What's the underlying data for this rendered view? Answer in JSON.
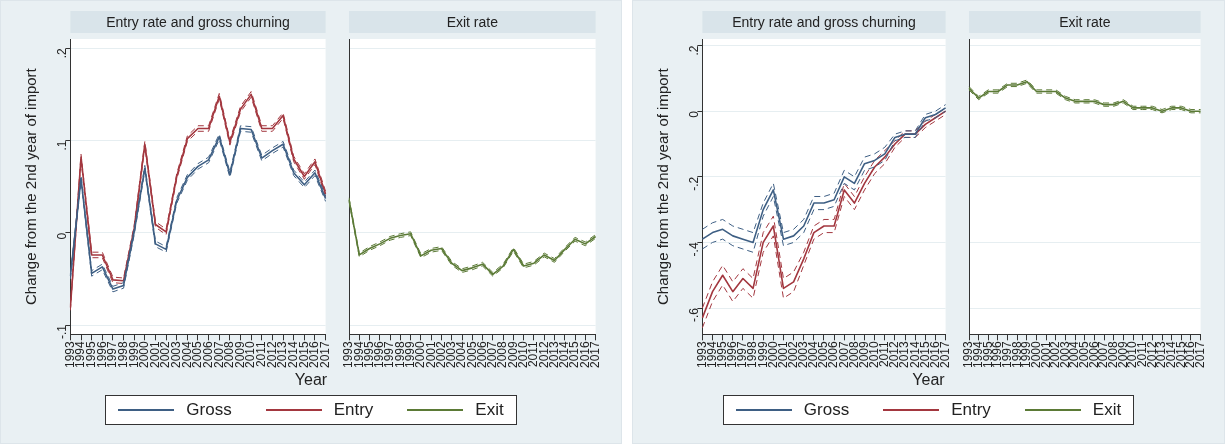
{
  "chart_data": [
    {
      "type": "line",
      "title": "Entry rate and gross churning",
      "ylabel": "Change from the 2nd year of import",
      "xlabel": "Year",
      "categories": [
        "1993",
        "1994",
        "1995",
        "1996",
        "1997",
        "1998",
        "1999",
        "2000",
        "2001",
        "2002",
        "2003",
        "2004",
        "2005",
        "2006",
        "2007",
        "2008",
        "2009",
        "2010",
        "2011",
        "2012",
        "2013",
        "2014",
        "2015",
        "2016",
        "2017"
      ],
      "ylim": [
        -0.11,
        0.21
      ],
      "yticks": [
        {
          "value": -0.1,
          "label": "-.1"
        },
        0,
        {
          "value": 0.1,
          "label": ".1"
        },
        {
          "value": 0.2,
          "label": ".2"
        }
      ],
      "grid": "y",
      "legend": "bottom",
      "marker": "none",
      "line_style": "solid",
      "series": [
        {
          "name": "Gross",
          "color": "#3e5f84",
          "values": [
            -0.047,
            0.059,
            -0.044,
            -0.037,
            -0.061,
            -0.057,
            0.001,
            0.07,
            -0.012,
            -0.018,
            0.035,
            0.06,
            0.072,
            0.079,
            0.104,
            0.063,
            0.113,
            0.112,
            0.081,
            0.089,
            0.096,
            0.065,
            0.052,
            0.065,
            0.037
          ]
        },
        {
          "color": "#3e5f84",
          "line_style": "dashed",
          "values": [
            -0.05,
            0.056,
            -0.047,
            -0.04,
            -0.064,
            -0.06,
            -0.002,
            0.067,
            -0.015,
            -0.021,
            0.032,
            0.057,
            0.069,
            0.076,
            0.101,
            0.06,
            0.11,
            0.109,
            0.078,
            0.086,
            0.093,
            0.062,
            0.049,
            0.062,
            0.034
          ]
        },
        {
          "color": "#3e5f84",
          "line_style": "dashed",
          "values": [
            -0.044,
            0.062,
            -0.041,
            -0.034,
            -0.058,
            -0.054,
            0.004,
            0.073,
            -0.009,
            -0.015,
            0.038,
            0.063,
            0.075,
            0.082,
            0.107,
            0.066,
            0.116,
            0.115,
            0.084,
            0.092,
            0.099,
            0.068,
            0.055,
            0.068,
            0.04
          ]
        },
        {
          "name": "Entry",
          "color": "#a3373f",
          "values": [
            -0.081,
            0.082,
            -0.024,
            -0.024,
            -0.051,
            -0.052,
            0.005,
            0.096,
            0.009,
            0.001,
            0.061,
            0.102,
            0.113,
            0.113,
            0.148,
            0.098,
            0.134,
            0.15,
            0.113,
            0.113,
            0.127,
            0.08,
            0.061,
            0.077,
            0.042
          ]
        },
        {
          "color": "#a3373f",
          "line_style": "dashed",
          "values": [
            -0.084,
            0.079,
            -0.027,
            -0.027,
            -0.054,
            -0.055,
            0.002,
            0.093,
            0.006,
            -0.002,
            0.058,
            0.099,
            0.11,
            0.11,
            0.145,
            0.095,
            0.131,
            0.147,
            0.11,
            0.11,
            0.124,
            0.077,
            0.058,
            0.074,
            0.039
          ]
        },
        {
          "color": "#a3373f",
          "line_style": "dashed",
          "values": [
            -0.078,
            0.085,
            -0.021,
            -0.021,
            -0.048,
            -0.049,
            0.008,
            0.099,
            0.012,
            0.004,
            0.064,
            0.105,
            0.116,
            0.116,
            0.151,
            0.101,
            0.137,
            0.153,
            0.116,
            0.116,
            0.13,
            0.083,
            0.064,
            0.08,
            0.045
          ]
        }
      ]
    },
    {
      "type": "line",
      "title": "Exit rate",
      "categories": [
        "1993",
        "1994",
        "1995",
        "1996",
        "1997",
        "1998",
        "1999",
        "2000",
        "2001",
        "2002",
        "2003",
        "2004",
        "2005",
        "2006",
        "2007",
        "2008",
        "2009",
        "2010",
        "2011",
        "2012",
        "2013",
        "2014",
        "2015",
        "2016",
        "2017"
      ],
      "ylim": [
        -0.11,
        0.21
      ],
      "yticks": [
        -0.1,
        0,
        0.1,
        0.2
      ],
      "tick_labels": "x",
      "grid": "y",
      "legend": "bottom",
      "marker": "none",
      "line_style": "solid",
      "series": [
        {
          "name": "Exit",
          "color": "#5b7a36",
          "values": [
            0.036,
            -0.024,
            -0.017,
            -0.012,
            -0.006,
            -0.003,
            -0.001,
            -0.025,
            -0.019,
            -0.017,
            -0.033,
            -0.041,
            -0.038,
            -0.034,
            -0.045,
            -0.036,
            -0.018,
            -0.036,
            -0.033,
            -0.024,
            -0.03,
            -0.018,
            -0.007,
            -0.012,
            -0.004
          ]
        },
        {
          "color": "#5b7a36",
          "line_style": "dashed",
          "values": [
            0.034,
            -0.026,
            -0.019,
            -0.014,
            -0.008,
            -0.005,
            -0.003,
            -0.027,
            -0.021,
            -0.019,
            -0.035,
            -0.043,
            -0.04,
            -0.036,
            -0.047,
            -0.038,
            -0.02,
            -0.038,
            -0.035,
            -0.026,
            -0.032,
            -0.02,
            -0.009,
            -0.014,
            -0.006
          ]
        },
        {
          "color": "#5b7a36",
          "line_style": "dashed",
          "values": [
            0.038,
            -0.022,
            -0.015,
            -0.01,
            -0.004,
            -0.001,
            0.001,
            -0.023,
            -0.017,
            -0.015,
            -0.031,
            -0.039,
            -0.036,
            -0.032,
            -0.043,
            -0.034,
            -0.016,
            -0.034,
            -0.031,
            -0.022,
            -0.028,
            -0.016,
            -0.005,
            -0.01,
            -0.002
          ]
        }
      ]
    },
    {
      "type": "line",
      "title": "Entry rate and gross churning",
      "ylabel": "Change from the 2nd year of import",
      "xlabel": "Year",
      "categories": [
        "1993",
        "1994",
        "1995",
        "1996",
        "1997",
        "1998",
        "1999",
        "2000",
        "2001",
        "2002",
        "2003",
        "2004",
        "2005",
        "2006",
        "2007",
        "2008",
        "2009",
        "2010",
        "2011",
        "2012",
        "2013",
        "2014",
        "2015",
        "2016",
        "2017"
      ],
      "ylim": [
        -0.68,
        0.22
      ],
      "yticks": [
        {
          "value": -0.6,
          "label": "-.6"
        },
        {
          "value": -0.4,
          "label": "-.4"
        },
        {
          "value": -0.2,
          "label": "-.2"
        },
        0,
        {
          "value": 0.2,
          "label": ".2"
        }
      ],
      "grid": "y",
      "legend": "bottom",
      "marker": "none",
      "line_style": "solid",
      "series": [
        {
          "name": "Gross",
          "color": "#3e5f84",
          "values": [
            -0.39,
            -0.37,
            -0.36,
            -0.38,
            -0.39,
            -0.4,
            -0.3,
            -0.24,
            -0.39,
            -0.38,
            -0.35,
            -0.28,
            -0.28,
            -0.27,
            -0.2,
            -0.22,
            -0.16,
            -0.15,
            -0.13,
            -0.08,
            -0.07,
            -0.07,
            -0.02,
            -0.01,
            0.01
          ]
        },
        {
          "color": "#3e5f84",
          "line_style": "dashed",
          "values": [
            -0.42,
            -0.4,
            -0.39,
            -0.41,
            -0.42,
            -0.43,
            -0.32,
            -0.26,
            -0.41,
            -0.4,
            -0.37,
            -0.3,
            -0.3,
            -0.29,
            -0.22,
            -0.24,
            -0.18,
            -0.17,
            -0.15,
            -0.09,
            -0.08,
            -0.08,
            -0.03,
            -0.02,
            0.0
          ]
        },
        {
          "color": "#3e5f84",
          "line_style": "dashed",
          "values": [
            -0.36,
            -0.34,
            -0.33,
            -0.35,
            -0.36,
            -0.37,
            -0.28,
            -0.22,
            -0.37,
            -0.36,
            -0.33,
            -0.26,
            -0.26,
            -0.25,
            -0.18,
            -0.2,
            -0.14,
            -0.13,
            -0.11,
            -0.07,
            -0.06,
            -0.06,
            -0.01,
            0.0,
            0.02
          ]
        },
        {
          "name": "Entry",
          "color": "#a3373f",
          "values": [
            -0.63,
            -0.55,
            -0.5,
            -0.55,
            -0.51,
            -0.54,
            -0.4,
            -0.35,
            -0.54,
            -0.52,
            -0.45,
            -0.37,
            -0.35,
            -0.35,
            -0.24,
            -0.28,
            -0.22,
            -0.17,
            -0.14,
            -0.1,
            -0.07,
            -0.07,
            -0.04,
            -0.02,
            0.0
          ]
        },
        {
          "color": "#a3373f",
          "line_style": "dashed",
          "values": [
            -0.66,
            -0.58,
            -0.53,
            -0.58,
            -0.54,
            -0.57,
            -0.43,
            -0.38,
            -0.57,
            -0.55,
            -0.47,
            -0.39,
            -0.37,
            -0.37,
            -0.26,
            -0.3,
            -0.24,
            -0.19,
            -0.16,
            -0.11,
            -0.08,
            -0.08,
            -0.05,
            -0.03,
            -0.01
          ]
        },
        {
          "color": "#a3373f",
          "line_style": "dashed",
          "values": [
            -0.6,
            -0.52,
            -0.47,
            -0.52,
            -0.48,
            -0.51,
            -0.37,
            -0.32,
            -0.51,
            -0.49,
            -0.43,
            -0.35,
            -0.33,
            -0.33,
            -0.22,
            -0.26,
            -0.2,
            -0.15,
            -0.12,
            -0.09,
            -0.06,
            -0.06,
            -0.03,
            -0.01,
            0.01
          ]
        }
      ]
    },
    {
      "type": "line",
      "title": "Exit rate",
      "categories": [
        "1993",
        "1994",
        "1995",
        "1996",
        "1997",
        "1998",
        "1999",
        "2000",
        "2001",
        "2002",
        "2003",
        "2004",
        "2005",
        "2006",
        "2007",
        "2008",
        "2009",
        "2010",
        "2011",
        "2012",
        "2013",
        "2014",
        "2015",
        "2016",
        "2017"
      ],
      "ylim": [
        -0.68,
        0.22
      ],
      "yticks": [
        -0.6,
        -0.4,
        -0.2,
        0,
        0.2
      ],
      "tick_labels": "x",
      "grid": "y",
      "legend": "bottom",
      "marker": "none",
      "line_style": "solid",
      "series": [
        {
          "name": "Exit",
          "color": "#5b7a36",
          "values": [
            0.07,
            0.04,
            0.06,
            0.06,
            0.08,
            0.08,
            0.09,
            0.06,
            0.06,
            0.06,
            0.04,
            0.03,
            0.03,
            0.03,
            0.02,
            0.02,
            0.03,
            0.01,
            0.01,
            0.01,
            0.0,
            0.01,
            0.01,
            0.0,
            0.0
          ]
        },
        {
          "color": "#5b7a36",
          "line_style": "dashed",
          "values": [
            0.065,
            0.035,
            0.055,
            0.055,
            0.075,
            0.075,
            0.085,
            0.055,
            0.055,
            0.055,
            0.035,
            0.025,
            0.025,
            0.025,
            0.015,
            0.015,
            0.025,
            0.005,
            0.005,
            0.005,
            -0.005,
            0.005,
            0.005,
            -0.005,
            -0.005
          ]
        },
        {
          "color": "#5b7a36",
          "line_style": "dashed",
          "values": [
            0.075,
            0.045,
            0.065,
            0.065,
            0.085,
            0.085,
            0.095,
            0.065,
            0.065,
            0.065,
            0.045,
            0.035,
            0.035,
            0.035,
            0.025,
            0.025,
            0.035,
            0.015,
            0.015,
            0.015,
            0.005,
            0.015,
            0.015,
            0.005,
            0.005
          ]
        }
      ]
    }
  ]
}
